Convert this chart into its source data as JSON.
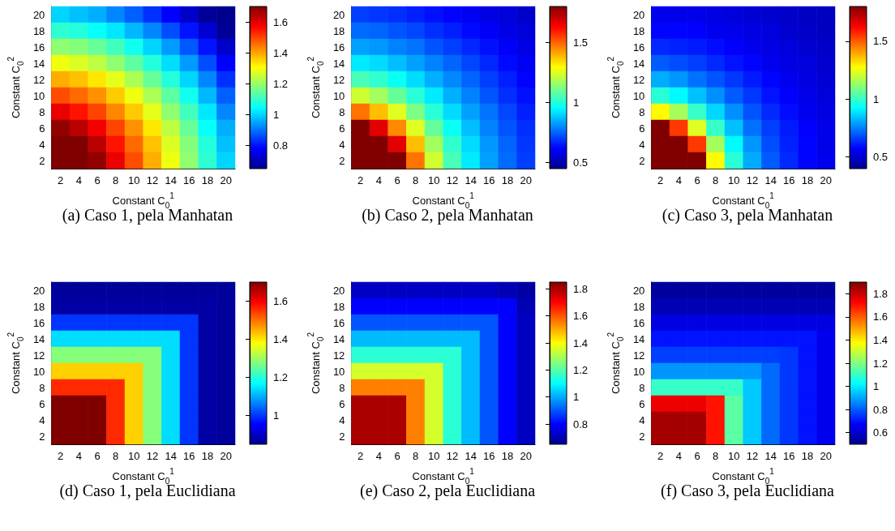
{
  "chart_data": [
    {
      "type": "heatmap",
      "title": "(a) Caso 1, pela Manhatan",
      "xlabel": "Constant C$_{0}$$^{1}$",
      "ylabel": "Constant C$_{0}$$^{2}$",
      "categories": [
        "2",
        "4",
        "6",
        "8",
        "10",
        "12",
        "14",
        "16",
        "18",
        "20"
      ],
      "y_categories": [
        "20",
        "18",
        "16",
        "14",
        "12",
        "10",
        "8",
        "6",
        "4",
        "2"
      ],
      "clim": [
        0.65,
        1.7
      ],
      "cticks": [
        0.8,
        1,
        1.2,
        1.4,
        1.6
      ],
      "cells": [
        [
          1.0,
          0.98,
          0.96,
          0.92,
          0.88,
          0.83,
          0.78,
          0.72,
          0.66,
          0.65
        ],
        [
          1.09,
          1.08,
          1.05,
          1.02,
          0.97,
          0.92,
          0.86,
          0.8,
          0.73,
          0.66
        ],
        [
          1.19,
          1.18,
          1.15,
          1.11,
          1.06,
          1.0,
          0.94,
          0.87,
          0.8,
          0.72
        ],
        [
          1.29,
          1.27,
          1.24,
          1.19,
          1.14,
          1.08,
          1.01,
          0.94,
          0.86,
          0.78
        ],
        [
          1.39,
          1.37,
          1.33,
          1.28,
          1.22,
          1.15,
          1.08,
          1.0,
          0.92,
          0.83
        ],
        [
          1.49,
          1.46,
          1.42,
          1.36,
          1.29,
          1.22,
          1.14,
          1.06,
          0.97,
          0.88
        ],
        [
          1.59,
          1.55,
          1.5,
          1.43,
          1.36,
          1.28,
          1.19,
          1.11,
          1.02,
          0.92
        ],
        [
          1.68,
          1.64,
          1.58,
          1.5,
          1.42,
          1.33,
          1.24,
          1.15,
          1.05,
          0.96
        ],
        [
          1.7,
          1.7,
          1.64,
          1.55,
          1.46,
          1.37,
          1.27,
          1.18,
          1.08,
          0.98
        ],
        [
          1.7,
          1.7,
          1.68,
          1.59,
          1.49,
          1.39,
          1.29,
          1.19,
          1.09,
          1.0
        ]
      ]
    },
    {
      "type": "heatmap",
      "title": "(b) Caso 2, pela Manhatan",
      "xlabel": "Constant C$_{0}$$^{1}$",
      "ylabel": "Constant C$_{0}$$^{2}$",
      "categories": [
        "2",
        "4",
        "6",
        "8",
        "10",
        "12",
        "14",
        "16",
        "18",
        "20"
      ],
      "y_categories": [
        "20",
        "18",
        "16",
        "14",
        "12",
        "10",
        "8",
        "6",
        "4",
        "2"
      ],
      "clim": [
        0.45,
        1.8
      ],
      "cticks": [
        0.5,
        1,
        1.5
      ],
      "cells": [
        [
          0.7,
          0.69,
          0.68,
          0.66,
          0.64,
          0.62,
          0.6,
          0.58,
          0.56,
          0.54
        ],
        [
          0.76,
          0.75,
          0.73,
          0.71,
          0.68,
          0.66,
          0.63,
          0.61,
          0.58,
          0.56
        ],
        [
          0.83,
          0.82,
          0.79,
          0.77,
          0.73,
          0.7,
          0.67,
          0.64,
          0.61,
          0.58
        ],
        [
          0.93,
          0.91,
          0.87,
          0.83,
          0.79,
          0.75,
          0.71,
          0.67,
          0.63,
          0.6
        ],
        [
          1.05,
          1.02,
          0.97,
          0.91,
          0.85,
          0.8,
          0.75,
          0.7,
          0.66,
          0.62
        ],
        [
          1.23,
          1.17,
          1.09,
          1.01,
          0.93,
          0.85,
          0.79,
          0.73,
          0.68,
          0.64
        ],
        [
          1.48,
          1.38,
          1.25,
          1.12,
          1.01,
          0.91,
          0.83,
          0.77,
          0.71,
          0.66
        ],
        [
          1.8,
          1.67,
          1.45,
          1.25,
          1.09,
          0.97,
          0.87,
          0.79,
          0.73,
          0.68
        ],
        [
          1.8,
          1.8,
          1.67,
          1.38,
          1.17,
          1.02,
          0.91,
          0.82,
          0.75,
          0.69
        ],
        [
          1.8,
          1.8,
          1.8,
          1.48,
          1.23,
          1.05,
          0.93,
          0.83,
          0.76,
          0.7
        ]
      ]
    },
    {
      "type": "heatmap",
      "title": "(c) Caso 3, pela Manhatan",
      "xlabel": "Constant C$_{0}$$^{1}$",
      "ylabel": "Constant C$_{0}$$^{2}$",
      "categories": [
        "2",
        "4",
        "6",
        "8",
        "10",
        "12",
        "14",
        "16",
        "18",
        "20"
      ],
      "y_categories": [
        "20",
        "18",
        "16",
        "14",
        "12",
        "10",
        "8",
        "6",
        "4",
        "2"
      ],
      "clim": [
        0.4,
        1.8
      ],
      "cticks": [
        0.5,
        1,
        1.5
      ],
      "cells": [
        [
          0.55,
          0.54,
          0.54,
          0.53,
          0.52,
          0.51,
          0.5,
          0.49,
          0.48,
          0.48
        ],
        [
          0.58,
          0.58,
          0.57,
          0.55,
          0.54,
          0.53,
          0.52,
          0.5,
          0.49,
          0.48
        ],
        [
          0.63,
          0.62,
          0.61,
          0.59,
          0.57,
          0.55,
          0.53,
          0.52,
          0.5,
          0.49
        ],
        [
          0.7,
          0.68,
          0.66,
          0.63,
          0.6,
          0.58,
          0.55,
          0.53,
          0.52,
          0.5
        ],
        [
          0.81,
          0.78,
          0.73,
          0.69,
          0.65,
          0.61,
          0.58,
          0.55,
          0.53,
          0.51
        ],
        [
          0.98,
          0.92,
          0.84,
          0.77,
          0.7,
          0.65,
          0.6,
          0.57,
          0.54,
          0.52
        ],
        [
          1.28,
          1.15,
          1.0,
          0.87,
          0.77,
          0.69,
          0.63,
          0.59,
          0.55,
          0.53
        ],
        [
          1.8,
          1.55,
          1.23,
          1.0,
          0.84,
          0.73,
          0.66,
          0.61,
          0.57,
          0.54
        ],
        [
          1.8,
          1.8,
          1.55,
          1.15,
          0.92,
          0.78,
          0.68,
          0.62,
          0.58,
          0.54
        ],
        [
          1.8,
          1.8,
          1.8,
          1.28,
          0.98,
          0.81,
          0.7,
          0.63,
          0.58,
          0.55
        ]
      ]
    },
    {
      "type": "heatmap",
      "title": "(d) Caso 1, pela Euclidiana",
      "xlabel": "Constant C$_{0}$$^{1}$",
      "ylabel": "Constant C$_{0}$$^{2}$",
      "categories": [
        "2",
        "4",
        "6",
        "8",
        "10",
        "12",
        "14",
        "16",
        "18",
        "20"
      ],
      "y_categories": [
        "20",
        "18",
        "16",
        "14",
        "12",
        "10",
        "8",
        "6",
        "4",
        "2"
      ],
      "clim": [
        0.85,
        1.7
      ],
      "cticks": [
        1,
        1.2,
        1.4,
        1.6
      ],
      "cells": [
        [
          0.86,
          0.86,
          0.86,
          0.86,
          0.86,
          0.86,
          0.86,
          0.86,
          0.86,
          0.86
        ],
        [
          0.87,
          0.87,
          0.87,
          0.87,
          0.87,
          0.87,
          0.87,
          0.87,
          0.87,
          0.86
        ],
        [
          1.0,
          1.0,
          1.0,
          1.0,
          1.0,
          1.0,
          1.0,
          1.0,
          0.87,
          0.86
        ],
        [
          1.14,
          1.14,
          1.14,
          1.14,
          1.14,
          1.14,
          1.14,
          1.0,
          0.87,
          0.86
        ],
        [
          1.28,
          1.28,
          1.28,
          1.28,
          1.28,
          1.28,
          1.14,
          1.0,
          0.87,
          0.86
        ],
        [
          1.42,
          1.42,
          1.42,
          1.42,
          1.42,
          1.28,
          1.14,
          1.0,
          0.87,
          0.86
        ],
        [
          1.56,
          1.56,
          1.56,
          1.56,
          1.42,
          1.28,
          1.14,
          1.0,
          0.87,
          0.86
        ],
        [
          1.7,
          1.7,
          1.7,
          1.56,
          1.42,
          1.28,
          1.14,
          1.0,
          0.87,
          0.86
        ],
        [
          1.7,
          1.7,
          1.7,
          1.56,
          1.42,
          1.28,
          1.14,
          1.0,
          0.87,
          0.86
        ],
        [
          1.7,
          1.7,
          1.7,
          1.56,
          1.42,
          1.28,
          1.14,
          1.0,
          0.87,
          0.86
        ]
      ]
    },
    {
      "type": "heatmap",
      "title": "(e) Caso 2, pela Euclidiana",
      "xlabel": "Constant C$_{0}$$^{1}$",
      "ylabel": "Constant C$_{0}$$^{2}$",
      "categories": [
        "2",
        "4",
        "6",
        "8",
        "10",
        "12",
        "14",
        "16",
        "18",
        "20"
      ],
      "y_categories": [
        "20",
        "18",
        "16",
        "14",
        "12",
        "10",
        "8",
        "6",
        "4",
        "2"
      ],
      "clim": [
        0.65,
        1.85
      ],
      "cticks": [
        0.8,
        1,
        1.2,
        1.4,
        1.6,
        1.8
      ],
      "cells": [
        [
          0.72,
          0.72,
          0.72,
          0.72,
          0.72,
          0.72,
          0.72,
          0.72,
          0.7,
          0.68
        ],
        [
          0.8,
          0.8,
          0.8,
          0.8,
          0.8,
          0.8,
          0.8,
          0.8,
          0.8,
          0.7
        ],
        [
          0.9,
          0.9,
          0.9,
          0.9,
          0.9,
          0.9,
          0.9,
          0.9,
          0.8,
          0.72
        ],
        [
          1.02,
          1.02,
          1.02,
          1.02,
          1.02,
          1.02,
          1.02,
          0.9,
          0.8,
          0.72
        ],
        [
          1.15,
          1.15,
          1.15,
          1.15,
          1.15,
          1.15,
          1.02,
          0.9,
          0.8,
          0.72
        ],
        [
          1.35,
          1.35,
          1.35,
          1.35,
          1.35,
          1.15,
          1.02,
          0.9,
          0.8,
          0.72
        ],
        [
          1.55,
          1.55,
          1.55,
          1.55,
          1.35,
          1.15,
          1.02,
          0.9,
          0.8,
          0.72
        ],
        [
          1.8,
          1.8,
          1.8,
          1.55,
          1.35,
          1.15,
          1.02,
          0.9,
          0.8,
          0.72
        ],
        [
          1.8,
          1.8,
          1.8,
          1.55,
          1.35,
          1.15,
          1.02,
          0.9,
          0.8,
          0.72
        ],
        [
          1.8,
          1.8,
          1.8,
          1.55,
          1.35,
          1.15,
          1.02,
          0.9,
          0.8,
          0.72
        ]
      ]
    },
    {
      "type": "heatmap",
      "title": "(f) Caso 3, pela Euclidiana",
      "xlabel": "Constant C$_{0}$$^{1}$",
      "ylabel": "Constant C$_{0}$$^{2}$",
      "categories": [
        "2",
        "4",
        "6",
        "8",
        "10",
        "12",
        "14",
        "16",
        "18",
        "20"
      ],
      "y_categories": [
        "20",
        "18",
        "16",
        "14",
        "12",
        "10",
        "8",
        "6",
        "4",
        "2"
      ],
      "clim": [
        0.5,
        1.9
      ],
      "cticks": [
        0.6,
        0.8,
        1,
        1.2,
        1.4,
        1.6,
        1.8
      ],
      "cells": [
        [
          0.52,
          0.52,
          0.52,
          0.52,
          0.52,
          0.52,
          0.52,
          0.52,
          0.52,
          0.52
        ],
        [
          0.56,
          0.56,
          0.56,
          0.56,
          0.56,
          0.56,
          0.56,
          0.56,
          0.56,
          0.56
        ],
        [
          0.63,
          0.63,
          0.63,
          0.63,
          0.63,
          0.63,
          0.63,
          0.63,
          0.63,
          0.63
        ],
        [
          0.7,
          0.7,
          0.7,
          0.7,
          0.7,
          0.7,
          0.7,
          0.7,
          0.7,
          0.65
        ],
        [
          0.76,
          0.76,
          0.76,
          0.76,
          0.76,
          0.76,
          0.76,
          0.75,
          0.7,
          0.65
        ],
        [
          0.88,
          0.88,
          0.88,
          0.88,
          0.88,
          0.88,
          0.82,
          0.75,
          0.7,
          0.65
        ],
        [
          1.1,
          1.1,
          1.1,
          1.1,
          1.1,
          0.95,
          0.82,
          0.75,
          0.7,
          0.65
        ],
        [
          1.75,
          1.75,
          1.75,
          1.7,
          1.15,
          0.95,
          0.82,
          0.75,
          0.7,
          0.65
        ],
        [
          1.85,
          1.85,
          1.85,
          1.7,
          1.15,
          0.95,
          0.82,
          0.75,
          0.7,
          0.65
        ],
        [
          1.85,
          1.85,
          1.85,
          1.7,
          1.15,
          0.95,
          0.82,
          0.75,
          0.7,
          0.65
        ]
      ]
    }
  ]
}
